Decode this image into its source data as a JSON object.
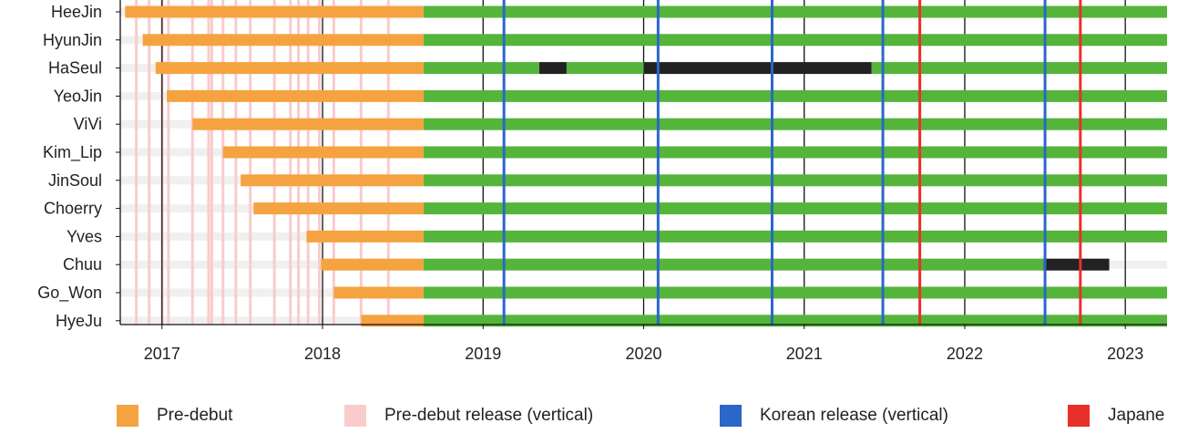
{
  "chart_data": {
    "type": "timeline-gantt",
    "title": "",
    "xlabel": "",
    "ylabel": "",
    "x_range": [
      2016.74,
      2023.26
    ],
    "x_ticks": [
      "2017",
      "2018",
      "2019",
      "2020",
      "2021",
      "2022",
      "2023"
    ],
    "grid": "vertical lines at each year",
    "members": [
      {
        "name": "HeeJin",
        "segments": [
          {
            "kind": "pre-debut",
            "start": 2016.77,
            "end": 2018.63
          },
          {
            "kind": "active",
            "start": 2018.63,
            "end": 2023.26
          }
        ]
      },
      {
        "name": "HyunJin",
        "segments": [
          {
            "kind": "pre-debut",
            "start": 2016.88,
            "end": 2018.63
          },
          {
            "kind": "active",
            "start": 2018.63,
            "end": 2023.26
          }
        ]
      },
      {
        "name": "HaSeul",
        "segments": [
          {
            "kind": "pre-debut",
            "start": 2016.96,
            "end": 2018.63
          },
          {
            "kind": "active",
            "start": 2018.63,
            "end": 2019.35
          },
          {
            "kind": "hiatus",
            "start": 2019.35,
            "end": 2019.52
          },
          {
            "kind": "active",
            "start": 2019.52,
            "end": 2020.0
          },
          {
            "kind": "hiatus",
            "start": 2020.0,
            "end": 2021.42
          },
          {
            "kind": "active",
            "start": 2021.42,
            "end": 2023.26
          }
        ]
      },
      {
        "name": "YeoJin",
        "segments": [
          {
            "kind": "pre-debut",
            "start": 2017.03,
            "end": 2018.63
          },
          {
            "kind": "active",
            "start": 2018.63,
            "end": 2023.26
          }
        ]
      },
      {
        "name": "ViVi",
        "segments": [
          {
            "kind": "pre-debut",
            "start": 2017.19,
            "end": 2018.63
          },
          {
            "kind": "active",
            "start": 2018.63,
            "end": 2023.26
          }
        ]
      },
      {
        "name": "Kim_Lip",
        "segments": [
          {
            "kind": "pre-debut",
            "start": 2017.38,
            "end": 2018.63
          },
          {
            "kind": "active",
            "start": 2018.63,
            "end": 2023.26
          }
        ]
      },
      {
        "name": "JinSoul",
        "segments": [
          {
            "kind": "pre-debut",
            "start": 2017.49,
            "end": 2018.63
          },
          {
            "kind": "active",
            "start": 2018.63,
            "end": 2023.26
          }
        ]
      },
      {
        "name": "Choerry",
        "segments": [
          {
            "kind": "pre-debut",
            "start": 2017.57,
            "end": 2018.63
          },
          {
            "kind": "active",
            "start": 2018.63,
            "end": 2023.26
          }
        ]
      },
      {
        "name": "Yves",
        "segments": [
          {
            "kind": "pre-debut",
            "start": 2017.9,
            "end": 2018.63
          },
          {
            "kind": "active",
            "start": 2018.63,
            "end": 2023.26
          }
        ]
      },
      {
        "name": "Chuu",
        "segments": [
          {
            "kind": "pre-debut",
            "start": 2017.99,
            "end": 2018.63
          },
          {
            "kind": "active",
            "start": 2018.63,
            "end": 2022.49
          },
          {
            "kind": "hiatus",
            "start": 2022.49,
            "end": 2022.9
          }
        ]
      },
      {
        "name": "Go_Won",
        "segments": [
          {
            "kind": "pre-debut",
            "start": 2018.07,
            "end": 2018.63
          },
          {
            "kind": "active",
            "start": 2018.63,
            "end": 2023.26
          }
        ]
      },
      {
        "name": "HyeJu",
        "segments": [
          {
            "kind": "pre-debut",
            "start": 2018.24,
            "end": 2018.63
          },
          {
            "kind": "active",
            "start": 2018.63,
            "end": 2023.26
          }
        ]
      }
    ],
    "pre_debut_releases": [
      2016.84,
      2016.92,
      2017.0,
      2017.04,
      2017.19,
      2017.29,
      2017.31,
      2017.38,
      2017.46,
      2017.55,
      2017.7,
      2017.8,
      2017.85,
      2017.91,
      2017.98,
      2018.07,
      2018.24,
      2018.41
    ],
    "korean_releases": [
      2019.13,
      2020.09,
      2020.8,
      2021.49,
      2022.5
    ],
    "japanese_releases": [
      2021.72,
      2022.72
    ],
    "legend": [
      {
        "label": "Pre-debut",
        "color": "#f5a341"
      },
      {
        "label": "Pre-debut release (vertical)",
        "color": "#f9cccc"
      },
      {
        "label": "Korean release (vertical)",
        "color": "#2a67c8"
      },
      {
        "label": "Japane",
        "color": "#e8302a"
      }
    ],
    "colors": {
      "pre_debut": "#f5a341",
      "active": "#54b53a",
      "hiatus": "#222222",
      "pre_debut_release": "#f9cccc",
      "korean_release": "#2a67c8",
      "japanese_release": "#e8302a",
      "year_line": "#111111",
      "row_band": "#f0f0f0"
    }
  }
}
